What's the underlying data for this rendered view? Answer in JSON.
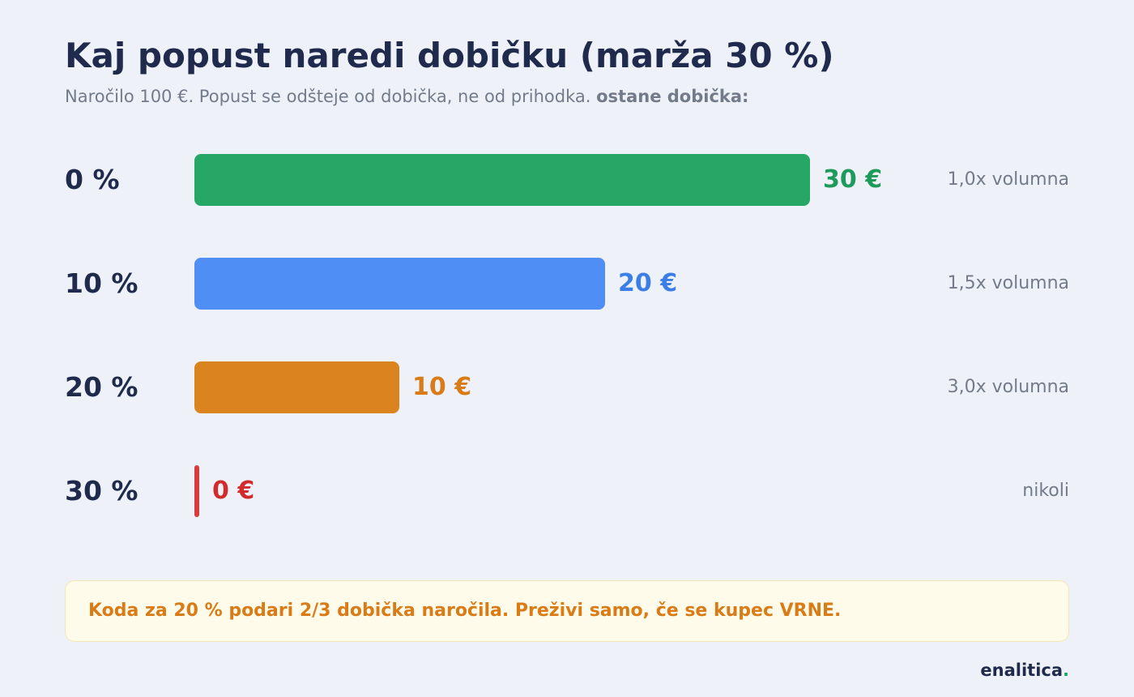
{
  "header": {
    "title": "Kaj popust naredi dobičku (marža 30 %)",
    "subtitle": "Naročilo 100 €. Popust se odšteje od dobička, ne od prihodka.",
    "subtitle_bold": "ostane dobička:"
  },
  "chart_data": {
    "type": "bar",
    "orientation": "horizontal",
    "categories": [
      "0 %",
      "10 %",
      "20 %",
      "30 %"
    ],
    "values": [
      30,
      20,
      10,
      0
    ],
    "value_labels": [
      "30 €",
      "20 €",
      "10 €",
      "0 €"
    ],
    "volume_notes": [
      "1,0x volumna",
      "1,5x volumna",
      "3,0x volumna",
      "nikoli"
    ],
    "colors": [
      "#27a766",
      "#4e8ef5",
      "#db831e",
      "#d83c3c"
    ],
    "value_label_colors": [
      "#1e9a5a",
      "#3b7fe6",
      "#d97c18",
      "#d22b2b"
    ],
    "xlim": [
      0,
      30
    ]
  },
  "callout": {
    "text": "Koda za 20 % podari 2/3 dobička naročila. Preživi samo, če se kupec VRNE."
  },
  "brand": {
    "name": "enalitica",
    "dot": "."
  }
}
